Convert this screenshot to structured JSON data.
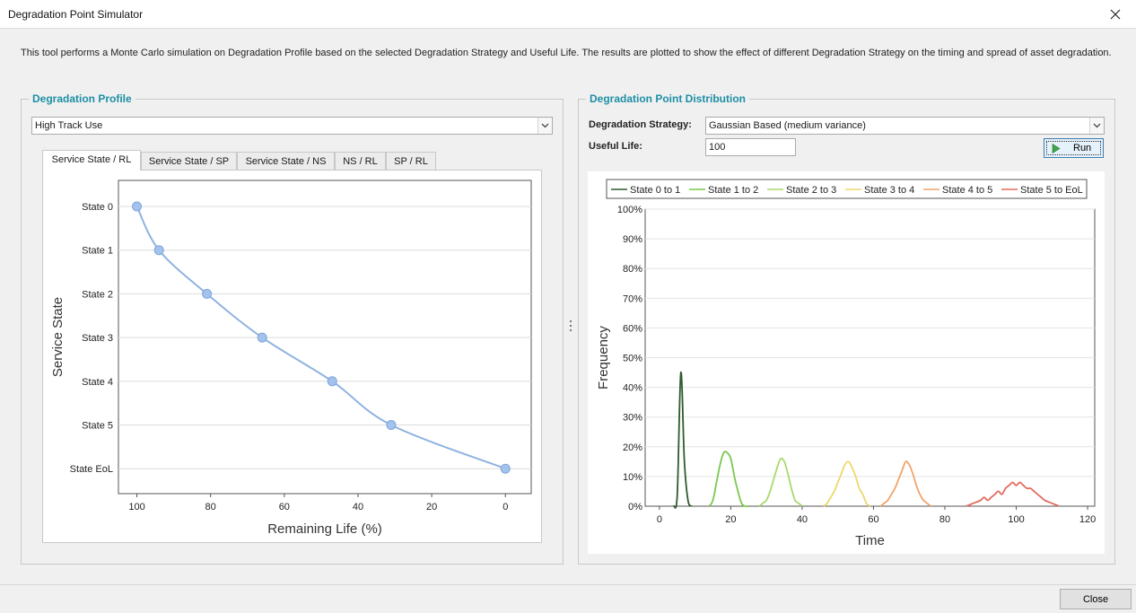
{
  "window": {
    "title": "Degradation Point Simulator"
  },
  "description": "This tool performs a Monte Carlo simulation on Degradation Profile based on the selected Degradation Strategy and Useful Life. The results are plotted to show the effect of different Degradation Strategy on the timing and spread of asset degradation.",
  "profile_group": {
    "title": "Degradation Profile",
    "profile_select": "High Track Use",
    "tabs": [
      {
        "label": "Service State / RL",
        "active": true
      },
      {
        "label": "Service State / SP",
        "active": false
      },
      {
        "label": "Service State / NS",
        "active": false
      },
      {
        "label": "NS / RL",
        "active": false
      },
      {
        "label": "SP / RL",
        "active": false
      }
    ]
  },
  "distribution_group": {
    "title": "Degradation Point Distribution",
    "strategy_label": "Degradation Strategy:",
    "strategy_value": "Gaussian Based (medium variance)",
    "useful_life_label": "Useful Life:",
    "useful_life_value": "100",
    "run_label": "Run"
  },
  "close_label": "Close",
  "colors": {
    "accent": "#1e8fa5",
    "profile_line": "#8fb3e0",
    "profile_point": "#a3c2ec"
  },
  "icons": {
    "close": "close-icon",
    "dropdown": "chevron-down-icon",
    "run": "play-icon"
  },
  "chart_data": [
    {
      "type": "line",
      "title": "",
      "xlabel": "Remaining Life (%)",
      "ylabel": "Service State",
      "xlim": [
        105,
        -7
      ],
      "x_ticks": [
        100,
        80,
        60,
        40,
        20,
        0
      ],
      "categories": [
        "State 0",
        "State 1",
        "State 2",
        "State 3",
        "State 4",
        "State 5",
        "State EoL"
      ],
      "x": [
        100,
        94,
        81,
        66,
        47,
        31,
        0
      ],
      "grid": true,
      "legend": "none"
    },
    {
      "type": "line",
      "title": "",
      "xlabel": "Time",
      "ylabel": "Frequency",
      "xlim": [
        -4,
        122
      ],
      "ylim": [
        0,
        100
      ],
      "x_ticks": [
        0,
        20,
        40,
        60,
        80,
        100,
        120
      ],
      "y_ticks": [
        "0%",
        "10%",
        "20%",
        "30%",
        "40%",
        "50%",
        "60%",
        "70%",
        "80%",
        "90%",
        "100%"
      ],
      "grid": true,
      "legend": "top",
      "series": [
        {
          "name": "State 0 to 1",
          "color": "#2f5a2f",
          "x": [
            4,
            5,
            6,
            7,
            8,
            9
          ],
          "y": [
            0,
            4,
            45,
            15,
            2,
            0
          ]
        },
        {
          "name": "State 1 to 2",
          "color": "#7ac74f",
          "x": [
            14,
            15,
            16,
            17,
            18,
            19,
            20,
            21,
            22,
            23,
            24,
            25
          ],
          "y": [
            0,
            2,
            8,
            14,
            18,
            18,
            16,
            10,
            5,
            1,
            0,
            0
          ]
        },
        {
          "name": "State 2 to 3",
          "color": "#a9d86e",
          "x": [
            28,
            29,
            30,
            31,
            32,
            33,
            34,
            35,
            36,
            37,
            38,
            39,
            40
          ],
          "y": [
            0,
            1,
            2,
            5,
            9,
            13,
            16,
            15,
            11,
            6,
            2,
            1,
            0
          ]
        },
        {
          "name": "State 3 to 4",
          "color": "#ecd96b",
          "x": [
            46,
            47,
            48,
            49,
            50,
            51,
            52,
            53,
            54,
            55,
            56,
            57,
            58,
            59
          ],
          "y": [
            0,
            1,
            3,
            5,
            8,
            11,
            14,
            15,
            13,
            10,
            6,
            4,
            1,
            0
          ]
        },
        {
          "name": "State 4 to 5",
          "color": "#f2a36b",
          "x": [
            62,
            63,
            64,
            65,
            66,
            67,
            68,
            69,
            70,
            71,
            72,
            73,
            74,
            75,
            76
          ],
          "y": [
            0,
            1,
            2,
            4,
            6,
            9,
            12,
            15,
            14,
            11,
            7,
            4,
            2,
            1,
            0
          ]
        },
        {
          "name": "State 5 to EoL",
          "color": "#e36b5f",
          "x": [
            86,
            88,
            90,
            91,
            92,
            93,
            94,
            95,
            96,
            97,
            98,
            99,
            100,
            101,
            102,
            103,
            104,
            105,
            106,
            107,
            108,
            110,
            112
          ],
          "y": [
            0,
            1,
            2,
            3,
            2,
            3,
            4,
            5,
            4,
            6,
            7,
            8,
            7,
            8,
            7,
            6,
            6,
            5,
            4,
            3,
            2,
            1,
            0
          ]
        }
      ]
    }
  ]
}
